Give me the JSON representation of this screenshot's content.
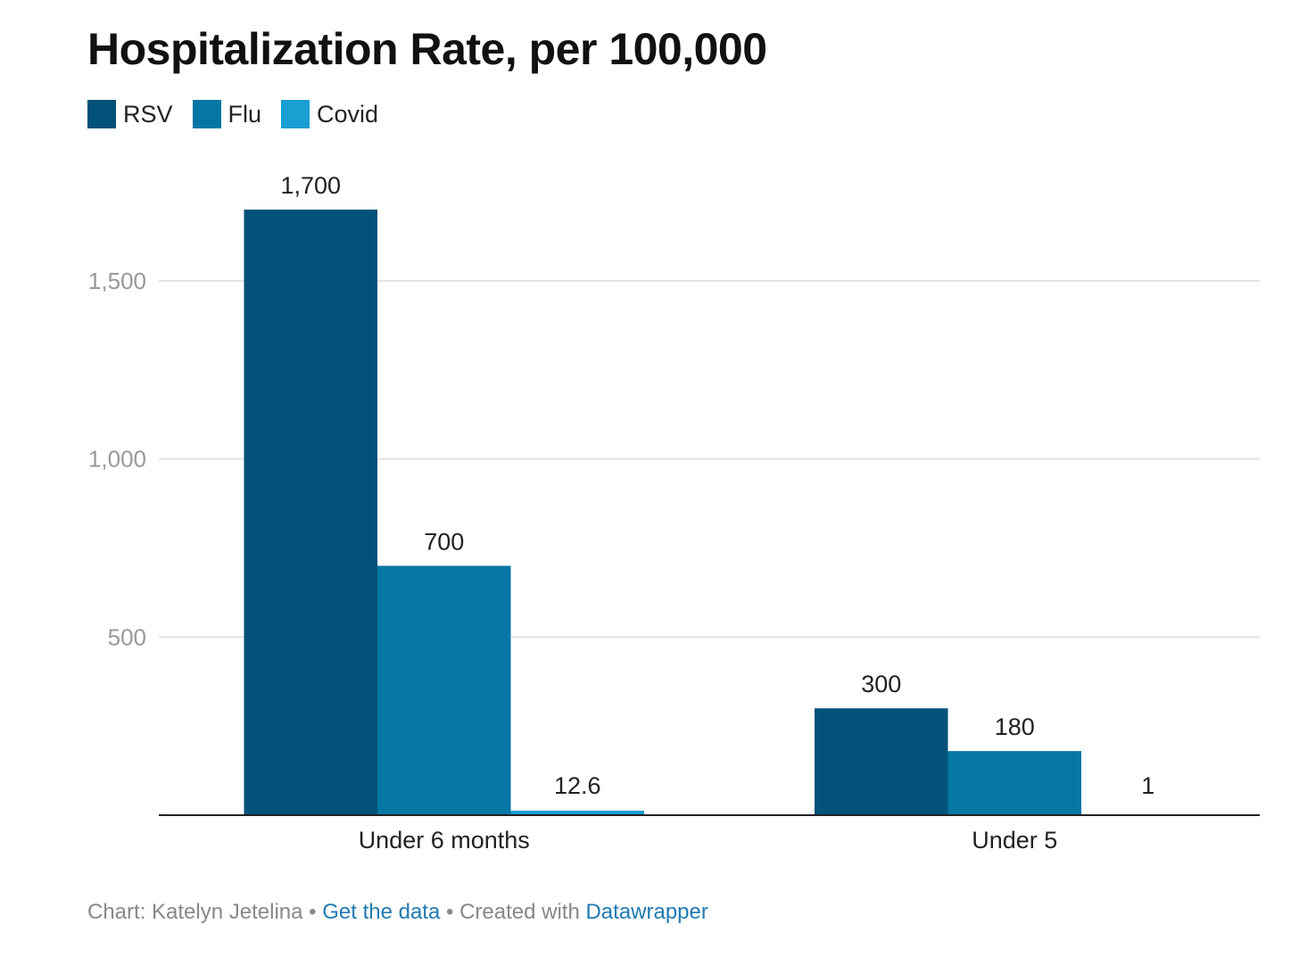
{
  "chart_data": {
    "type": "bar",
    "title": "Hospitalization Rate, per 100,000",
    "categories": [
      "Under 6 months",
      "Under 5"
    ],
    "series": [
      {
        "name": "RSV",
        "color": "#03527a",
        "values": [
          1700,
          300
        ],
        "labels": [
          "1,700",
          "300"
        ]
      },
      {
        "name": "Flu",
        "color": "#0677a4",
        "values": [
          700,
          180
        ],
        "labels": [
          "700",
          "180"
        ]
      },
      {
        "name": "Covid",
        "color": "#1a9fd3",
        "values": [
          12.6,
          1
        ],
        "labels": [
          "12.6",
          "1"
        ]
      }
    ],
    "yticks": [
      500,
      1000,
      1500
    ],
    "ytick_labels": [
      "500",
      "1,000",
      "1,500"
    ],
    "ylim": [
      0,
      1700
    ],
    "grid": true,
    "legend": "top-left"
  },
  "footer": {
    "prefix": "Chart: Katelyn Jetelina",
    "sep1": "•",
    "link1": "Get the data",
    "sep2": "•",
    "created": "Created with",
    "link2": "Datawrapper"
  }
}
